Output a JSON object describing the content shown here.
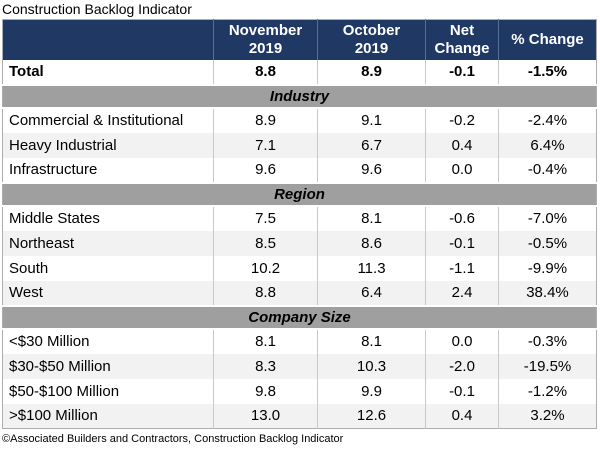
{
  "page": {
    "title": "Construction Backlog Indicator",
    "footer": "©Associated Builders and Contractors, Construction Backlog Indicator"
  },
  "colors": {
    "header_bg": "#1f3864",
    "header_text": "#ffffff",
    "section_bg": "#9f9f9f",
    "row_bg": "#ffffff",
    "row_alt_bg": "#f2f2f2",
    "divider": "#c9c9c9",
    "outer_border": "#adadad",
    "text": "#000000"
  },
  "chart_data": {
    "type": "table",
    "title": "Construction Backlog Indicator",
    "columns": [
      "",
      "November 2019",
      "October 2019",
      "Net Change",
      "% Change"
    ],
    "header_display": [
      "",
      "November\n2019",
      "October\n2019",
      "Net\nChange",
      "% Change"
    ],
    "rows": [
      {
        "kind": "data",
        "label": "Total",
        "values": [
          "8.8",
          "8.9",
          "-0.1",
          "-1.5%"
        ],
        "bold": true
      },
      {
        "kind": "section",
        "label": "Industry"
      },
      {
        "kind": "data",
        "label": "Commercial & Institutional",
        "values": [
          "8.9",
          "9.1",
          "-0.2",
          "-2.4%"
        ]
      },
      {
        "kind": "data",
        "label": "Heavy Industrial",
        "values": [
          "7.1",
          "6.7",
          "0.4",
          "6.4%"
        ]
      },
      {
        "kind": "data",
        "label": "Infrastructure",
        "values": [
          "9.6",
          "9.6",
          "0.0",
          "-0.4%"
        ]
      },
      {
        "kind": "section",
        "label": "Region"
      },
      {
        "kind": "data",
        "label": "Middle States",
        "values": [
          "7.5",
          "8.1",
          "-0.6",
          "-7.0%"
        ]
      },
      {
        "kind": "data",
        "label": "Northeast",
        "values": [
          "8.5",
          "8.6",
          "-0.1",
          "-0.5%"
        ]
      },
      {
        "kind": "data",
        "label": "South",
        "values": [
          "10.2",
          "11.3",
          "-1.1",
          "-9.9%"
        ]
      },
      {
        "kind": "data",
        "label": "West",
        "values": [
          "8.8",
          "6.4",
          "2.4",
          "38.4%"
        ]
      },
      {
        "kind": "section",
        "label": "Company Size"
      },
      {
        "kind": "data",
        "label": "<$30 Million",
        "values": [
          "8.1",
          "8.1",
          "0.0",
          "-0.3%"
        ]
      },
      {
        "kind": "data",
        "label": "$30-$50 Million",
        "values": [
          "8.3",
          "10.3",
          "-2.0",
          "-19.5%"
        ]
      },
      {
        "kind": "data",
        "label": "$50-$100 Million",
        "values": [
          "9.8",
          "9.9",
          "-0.1",
          "-1.2%"
        ]
      },
      {
        "kind": "data",
        "label": ">$100 Million",
        "values": [
          "13.0",
          "12.6",
          "0.4",
          "3.2%"
        ]
      }
    ]
  }
}
